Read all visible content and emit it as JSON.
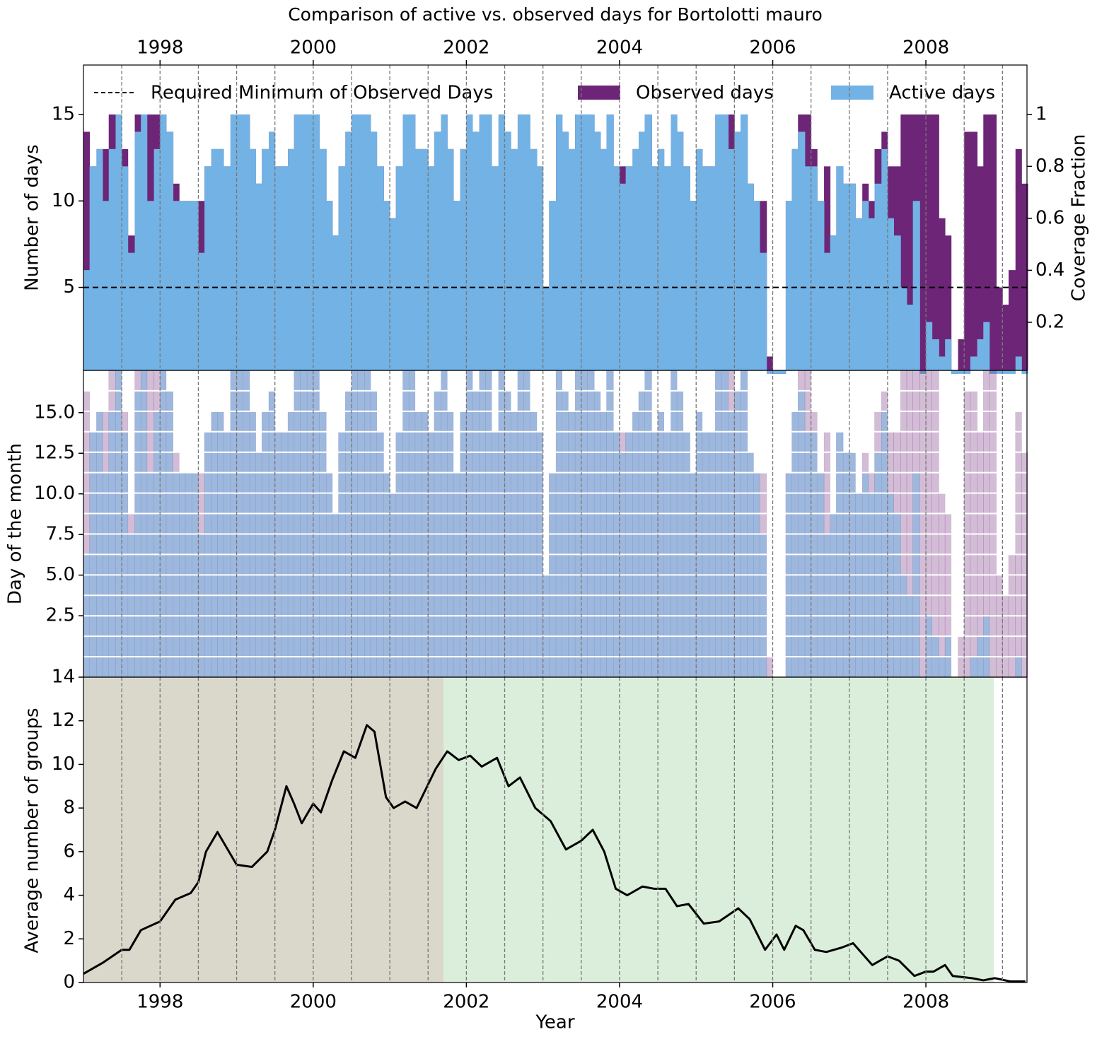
{
  "chart_data": [
    {
      "type": "bar",
      "title": "Comparison of active vs. observed days for Bortolotti mauro",
      "ylabel": "Number of days",
      "y2label": "Coverage Fraction",
      "xlim": [
        1997.0,
        2009.32
      ],
      "xticks": [
        1998,
        2000,
        2002,
        2004,
        2006,
        2008
      ],
      "ylim": [
        0.2,
        17.86
      ],
      "yticks": [
        5,
        10,
        15
      ],
      "y2lim": [
        0.0148,
        1.19
      ],
      "y2ticks": [
        0.2,
        0.4,
        0.6,
        0.8,
        1.0
      ],
      "hline": 5,
      "hline_label": "Required Minimum of Observed Days",
      "vlines": [
        1997.5,
        1998,
        1998.5,
        1999,
        1999.5,
        2000,
        2000.5,
        2001,
        2001.5,
        2002,
        2002.5,
        2003,
        2003.5,
        2004,
        2004.5,
        2005,
        2005.5,
        2006,
        2006.5,
        2007,
        2007.5,
        2008,
        2008.5,
        2009
      ],
      "x": [
        1997.0,
        1997.08,
        1997.17,
        1997.25,
        1997.33,
        1997.42,
        1997.5,
        1997.58,
        1997.67,
        1997.75,
        1997.83,
        1997.92,
        1998.0,
        1998.08,
        1998.17,
        1998.25,
        1998.33,
        1998.42,
        1998.5,
        1998.58,
        1998.67,
        1998.75,
        1998.83,
        1998.92,
        1999.0,
        1999.08,
        1999.17,
        1999.25,
        1999.33,
        1999.42,
        1999.5,
        1999.58,
        1999.67,
        1999.75,
        1999.83,
        1999.92,
        2000.0,
        2000.08,
        2000.17,
        2000.25,
        2000.33,
        2000.42,
        2000.5,
        2000.58,
        2000.67,
        2000.75,
        2000.83,
        2000.92,
        2001.0,
        2001.08,
        2001.17,
        2001.25,
        2001.33,
        2001.42,
        2001.5,
        2001.58,
        2001.67,
        2001.75,
        2001.83,
        2001.92,
        2002.0,
        2002.08,
        2002.17,
        2002.25,
        2002.33,
        2002.42,
        2002.5,
        2002.58,
        2002.67,
        2002.75,
        2002.83,
        2002.92,
        2003.0,
        2003.08,
        2003.17,
        2003.25,
        2003.33,
        2003.42,
        2003.5,
        2003.58,
        2003.67,
        2003.75,
        2003.83,
        2003.92,
        2004.0,
        2004.08,
        2004.17,
        2004.25,
        2004.33,
        2004.42,
        2004.5,
        2004.58,
        2004.67,
        2004.75,
        2004.83,
        2004.92,
        2005.0,
        2005.08,
        2005.17,
        2005.25,
        2005.33,
        2005.42,
        2005.5,
        2005.58,
        2005.67,
        2005.75,
        2005.83,
        2005.92,
        2006.0,
        2006.08,
        2006.17,
        2006.25,
        2006.33,
        2006.42,
        2006.5,
        2006.58,
        2006.67,
        2006.75,
        2006.83,
        2006.92,
        2007.0,
        2007.08,
        2007.17,
        2007.25,
        2007.33,
        2007.42,
        2007.5,
        2007.58,
        2007.67,
        2007.75,
        2007.83,
        2007.92,
        2008.0,
        2008.08,
        2008.17,
        2008.25,
        2008.33,
        2008.42,
        2008.5,
        2008.58,
        2008.67,
        2008.75,
        2008.83,
        2008.92,
        2009.0,
        2009.08,
        2009.17,
        2009.25
      ],
      "series": [
        {
          "name": "Observed days",
          "color": "#6d2577",
          "values": [
            14,
            12,
            13,
            13,
            15,
            15,
            13,
            8,
            15,
            15,
            15,
            15,
            15,
            14,
            11,
            10,
            10,
            10,
            10,
            12,
            13,
            13,
            12,
            15,
            15,
            15,
            13,
            11,
            13,
            14,
            12,
            12,
            13,
            15,
            15,
            15,
            15,
            13,
            10,
            8,
            12,
            14,
            15,
            15,
            15,
            14,
            12,
            10,
            9,
            12,
            15,
            15,
            13,
            13,
            12,
            14,
            15,
            13,
            10,
            13,
            15,
            14,
            15,
            15,
            12,
            15,
            14,
            13,
            15,
            15,
            13,
            12,
            5,
            10,
            15,
            14,
            13,
            15,
            15,
            15,
            14,
            13,
            15,
            12,
            12,
            12,
            13,
            14,
            15,
            12,
            13,
            12,
            15,
            14,
            12,
            10,
            13,
            12,
            12,
            15,
            15,
            15,
            14,
            15,
            11,
            10,
            10,
            1,
            0,
            0,
            10,
            13,
            15,
            15,
            13,
            10,
            12,
            8,
            12,
            11,
            11,
            9,
            11,
            10,
            13,
            14,
            12,
            12,
            15,
            15,
            15,
            15,
            15,
            15,
            9,
            8,
            0,
            2,
            14,
            14,
            12,
            15,
            15,
            5,
            4,
            6,
            13,
            11
          ]
        },
        {
          "name": "Active days",
          "color": "#73b2e4",
          "values": [
            6,
            12,
            13,
            10,
            13,
            15,
            12,
            7,
            14,
            15,
            10,
            13,
            15,
            14,
            10,
            10,
            10,
            10,
            7,
            12,
            13,
            13,
            12,
            15,
            15,
            15,
            13,
            11,
            13,
            14,
            12,
            12,
            13,
            15,
            15,
            15,
            15,
            13,
            10,
            8,
            12,
            14,
            15,
            15,
            15,
            14,
            12,
            10,
            9,
            12,
            15,
            15,
            13,
            13,
            12,
            14,
            15,
            13,
            10,
            13,
            15,
            14,
            15,
            15,
            12,
            15,
            14,
            13,
            15,
            15,
            13,
            12,
            5,
            10,
            15,
            14,
            13,
            15,
            15,
            15,
            14,
            13,
            15,
            12,
            11,
            12,
            13,
            14,
            15,
            12,
            13,
            12,
            15,
            14,
            12,
            10,
            13,
            12,
            12,
            15,
            15,
            13,
            14,
            15,
            11,
            10,
            7,
            0,
            0,
            0,
            10,
            13,
            14,
            12,
            12,
            10,
            7,
            8,
            12,
            11,
            11,
            9,
            10,
            9,
            11,
            13,
            9,
            8,
            5,
            4,
            10,
            0,
            3,
            2,
            1,
            2,
            0,
            0,
            0,
            1,
            2,
            3,
            0,
            0,
            0,
            0,
            1,
            0
          ]
        }
      ]
    },
    {
      "type": "cells",
      "ylabel": "Day of the month",
      "ylim": [
        -1.28,
        17.6
      ],
      "yticks": [
        2.5,
        {
          "value": 5,
          "label": "5.0"
        },
        7.5,
        {
          "value": 10,
          "label": "10.0"
        },
        12.5,
        {
          "value": 15,
          "label": "15.0"
        }
      ]
    },
    {
      "type": "line",
      "xlabel": "Year",
      "ylabel": "Average number of groups",
      "color": "#000000",
      "ylim": [
        0,
        14
      ],
      "yticks": [
        0,
        2,
        4,
        6,
        8,
        10,
        12,
        14
      ],
      "spans": [
        {
          "x0": 1997.0,
          "x1": 2001.7,
          "color": "#dad8cb"
        },
        {
          "x0": 2001.7,
          "x1": 2008.88,
          "color": "#dbeedb"
        }
      ],
      "x": [
        1997.0,
        1997.25,
        1997.5,
        1997.6,
        1997.75,
        1998.0,
        1998.2,
        1998.4,
        1998.5,
        1998.6,
        1998.75,
        1998.9,
        1999.0,
        1999.2,
        1999.4,
        1999.5,
        1999.65,
        1999.75,
        1999.85,
        2000.0,
        2000.1,
        2000.25,
        2000.4,
        2000.55,
        2000.7,
        2000.8,
        2000.95,
        2001.05,
        2001.2,
        2001.35,
        2001.6,
        2001.75,
        2001.9,
        2002.05,
        2002.2,
        2002.4,
        2002.55,
        2002.7,
        2002.9,
        2003.1,
        2003.3,
        2003.5,
        2003.65,
        2003.8,
        2003.95,
        2004.1,
        2004.3,
        2004.45,
        2004.6,
        2004.75,
        2004.9,
        2005.1,
        2005.3,
        2005.55,
        2005.7,
        2005.9,
        2006.05,
        2006.15,
        2006.3,
        2006.4,
        2006.55,
        2006.7,
        2006.9,
        2007.05,
        2007.3,
        2007.5,
        2007.65,
        2007.85,
        2008.0,
        2008.1,
        2008.25,
        2008.35,
        2008.6,
        2008.75,
        2008.9,
        2009.1,
        2009.3
      ],
      "values": [
        0.4,
        0.9,
        1.5,
        1.5,
        2.4,
        2.8,
        3.8,
        4.1,
        4.6,
        6.0,
        6.9,
        6.0,
        5.4,
        5.3,
        6.0,
        7.0,
        9.0,
        8.2,
        7.3,
        8.2,
        7.8,
        9.3,
        10.6,
        10.3,
        11.8,
        11.5,
        8.5,
        8.0,
        8.3,
        8.0,
        9.8,
        10.6,
        10.2,
        10.4,
        9.9,
        10.3,
        9.0,
        9.4,
        8.0,
        7.4,
        6.1,
        6.5,
        7.0,
        6.0,
        4.3,
        4.0,
        4.4,
        4.3,
        4.3,
        3.5,
        3.6,
        2.7,
        2.8,
        3.4,
        2.9,
        1.5,
        2.2,
        1.5,
        2.6,
        2.4,
        1.5,
        1.4,
        1.6,
        1.8,
        0.8,
        1.2,
        1.0,
        0.3,
        0.5,
        0.5,
        0.8,
        0.3,
        0.2,
        0.1,
        0.2,
        0.05,
        0.05
      ]
    }
  ]
}
